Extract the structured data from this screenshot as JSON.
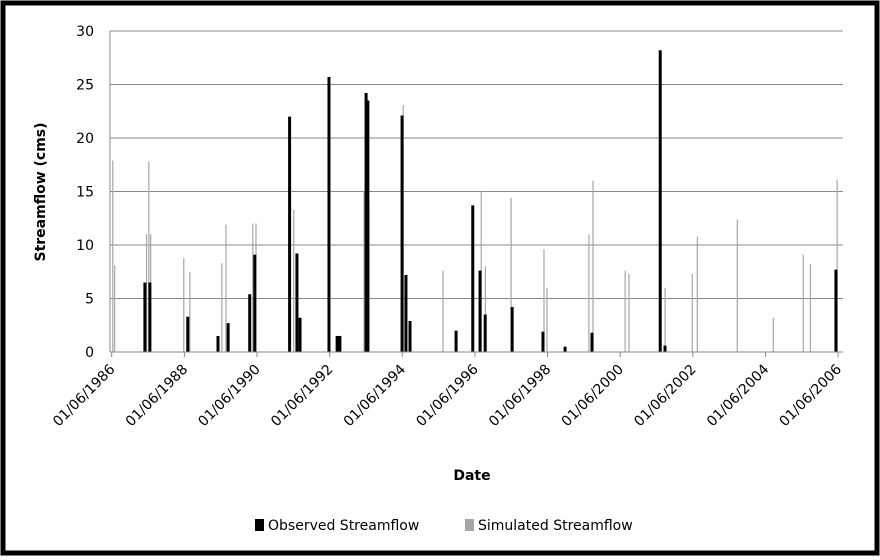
{
  "chart_data": {
    "type": "line",
    "y_label": "Streamflow (cms)",
    "x_label": "Date",
    "xlim": [
      "1986-05-15",
      "2006-07-20"
    ],
    "xticks": [
      {
        "value": "1986-06-01",
        "label": "01/06/1986"
      },
      {
        "value": "1988-06-01",
        "label": "01/06/1988"
      },
      {
        "value": "1990-06-01",
        "label": "01/06/1990"
      },
      {
        "value": "1992-06-01",
        "label": "01/06/1992"
      },
      {
        "value": "1994-06-01",
        "label": "01/06/1994"
      },
      {
        "value": "1996-06-01",
        "label": "01/06/1996"
      },
      {
        "value": "1998-06-01",
        "label": "01/06/1998"
      },
      {
        "value": "2000-06-01",
        "label": "01/06/2000"
      },
      {
        "value": "2002-06-01",
        "label": "01/06/2002"
      },
      {
        "value": "2004-06-01",
        "label": "01/06/2004"
      },
      {
        "value": "2006-06-01",
        "label": "01/06/2006"
      }
    ],
    "ylim": [
      0,
      30
    ],
    "yticks": [
      0,
      5,
      10,
      15,
      20,
      25,
      30
    ],
    "grid": true,
    "series": [
      {
        "name": "Simulated Streamflow",
        "color": "#a6a6a6",
        "x": [
          "1986-06-12",
          "1986-07-01",
          "1987-05-18",
          "1987-06-10",
          "1987-06-28",
          "1988-05-26",
          "1988-07-26",
          "1989-06-13",
          "1989-07-24",
          "1990-04-20",
          "1990-05-22",
          "1991-06-06",
          "1992-05-26",
          "1993-05-12",
          "1993-07-01",
          "1994-06-10",
          "1995-07-16",
          "1996-08-03",
          "1996-09-14",
          "1997-05-30",
          "1998-04-26",
          "1998-05-26",
          "1999-07-22",
          "1999-09-01",
          "2000-07-20",
          "2000-08-28",
          "2001-07-06",
          "2001-08-26",
          "2002-05-26",
          "2002-07-16",
          "2003-08-22",
          "2004-08-18",
          "2005-06-16",
          "2005-08-26",
          "2006-05-22"
        ],
        "values": [
          17.9,
          8.1,
          11,
          17.8,
          11,
          8.8,
          7.5,
          8.3,
          11.9,
          12,
          12,
          13.3,
          21.2,
          15,
          14,
          23.1,
          7.6,
          15,
          8,
          14.4,
          9.6,
          6,
          11,
          16,
          7.6,
          7.3,
          22.2,
          6,
          7.3,
          10.8,
          12.4,
          3.2,
          9.1,
          8.2,
          16.1
        ]
      },
      {
        "name": "Observed Streamflow",
        "color": "#000000",
        "x": [
          "1987-05-01",
          "1987-06-20",
          "1988-07-05",
          "1989-05-05",
          "1989-08-15",
          "1990-03-20",
          "1990-05-10",
          "1991-04-25",
          "1991-07-08",
          "1991-08-08",
          "1992-05-25",
          "1992-08-15",
          "1992-09-12",
          "1993-06-02",
          "1993-06-20",
          "1994-05-30",
          "1994-07-08",
          "1994-08-18",
          "1995-11-24",
          "1996-05-10",
          "1996-07-22",
          "1996-09-12",
          "1997-06-10",
          "1998-04-16",
          "1998-11-24",
          "1999-08-22",
          "2001-07-08",
          "2001-08-25",
          "2006-05-10"
        ],
        "values": [
          6.5,
          6.5,
          3.3,
          1.5,
          2.7,
          5.4,
          9.1,
          22,
          9.2,
          3.2,
          25.7,
          1.5,
          1.5,
          24.2,
          23.5,
          22.1,
          7.2,
          2.9,
          2,
          13.7,
          7.6,
          3.5,
          4.2,
          1.9,
          0.5,
          1.8,
          28.2,
          0.6,
          7.7
        ]
      }
    ]
  }
}
